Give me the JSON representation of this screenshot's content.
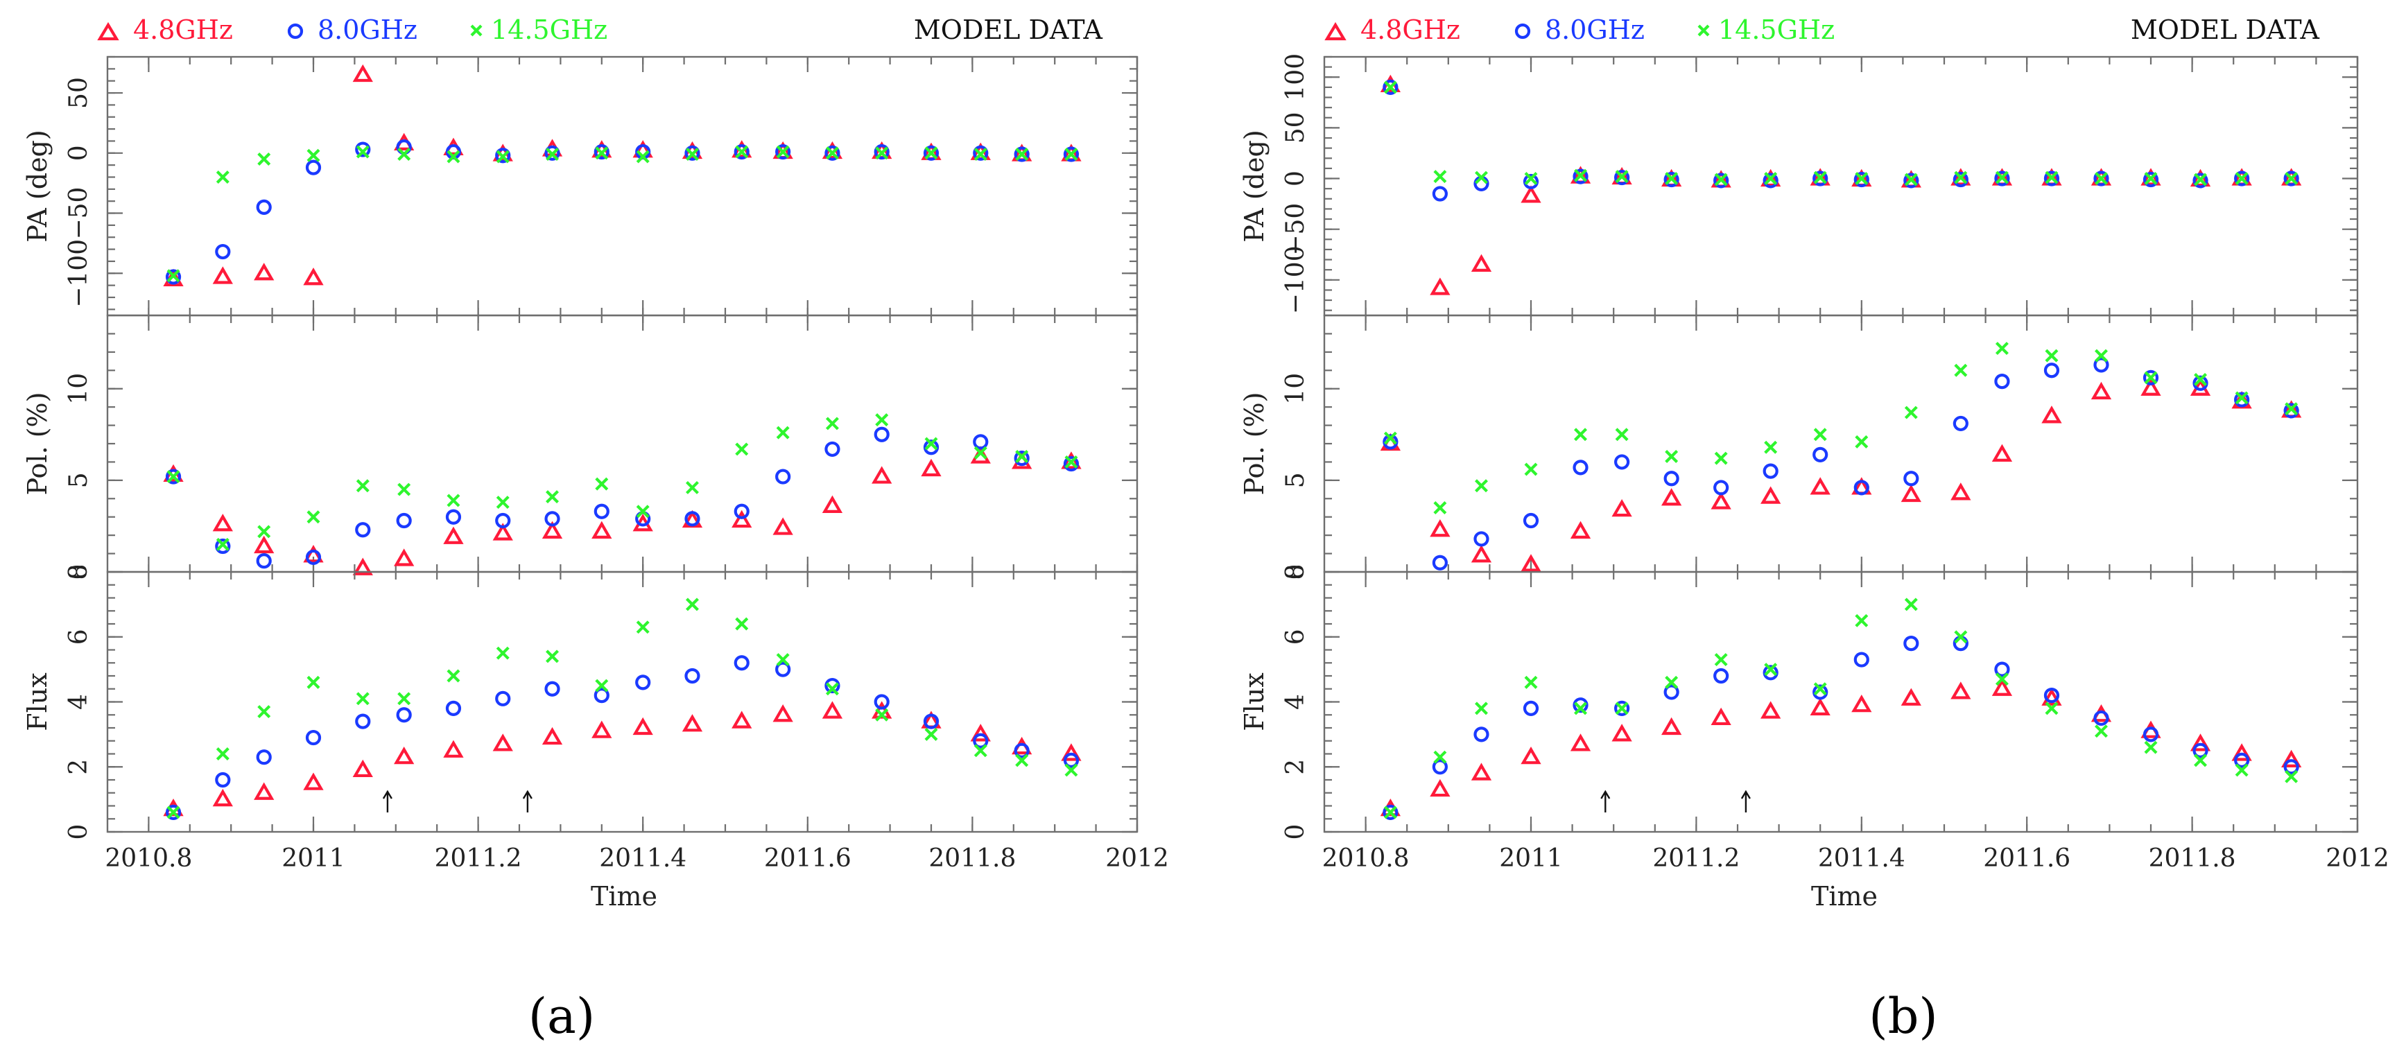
{
  "legend": [
    {
      "label": "4.8GHz",
      "color": "#ff1a3a",
      "marker": "triangle"
    },
    {
      "label": "8.0GHz",
      "color": "#1a3aff",
      "marker": "circle"
    },
    {
      "label": "14.5GHz",
      "color": "#2ef52e",
      "marker": "cross"
    }
  ],
  "model_label": "MODEL DATA",
  "xlabel": "Time",
  "xticks": [
    "2010.8",
    "2011",
    "2011.2",
    "2011.4",
    "2011.6",
    "2011.8",
    "2012"
  ],
  "colors": {
    "axis": "#6e6e6e",
    "overlap_purple": "#8a2aa0",
    "overlap_brown": "#8a5a3a",
    "overlap_teal": "#2a9a9a",
    "overlap_slate": "#556070"
  },
  "chart_data": [
    {
      "caption": "(a)",
      "type": "scatter",
      "x": [
        2010.83,
        2010.89,
        2010.94,
        2011.0,
        2011.06,
        2011.11,
        2011.17,
        2011.23,
        2011.29,
        2011.35,
        2011.4,
        2011.46,
        2011.52,
        2011.57,
        2011.63,
        2011.69,
        2011.75,
        2011.81,
        2011.86,
        2011.92
      ],
      "arrows": [
        2011.09,
        2011.26
      ],
      "panels": [
        {
          "ylabel": "PA (deg)",
          "ylim": [
            -135,
            80
          ],
          "yticks": [
            -100,
            -50,
            0,
            50
          ],
          "ytick_labels": [
            "−100",
            "−50",
            "0",
            "50"
          ],
          "series": [
            {
              "name": "4.8GHz",
              "values": [
                -105,
                -103,
                -100,
                -104,
                65,
                8,
                4,
                -1,
                3,
                2,
                2,
                1,
                2,
                1,
                1,
                1,
                0,
                0,
                -1,
                -1
              ]
            },
            {
              "name": "8.0GHz",
              "values": [
                -103,
                -82,
                -45,
                -12,
                3,
                5,
                1,
                -2,
                0,
                1,
                1,
                0,
                1,
                1,
                0,
                1,
                0,
                0,
                -1,
                -1
              ]
            },
            {
              "name": "14.5GHz",
              "values": [
                -102,
                -20,
                -5,
                -2,
                1,
                -1,
                -3,
                -3,
                -1,
                0,
                -3,
                -1,
                1,
                1,
                0,
                0,
                0,
                -1,
                -1,
                -1
              ]
            }
          ]
        },
        {
          "ylabel": "Pol. (%)",
          "ylim": [
            0,
            14
          ],
          "yticks": [
            0,
            5,
            10
          ],
          "ytick_labels": [
            "0",
            "5",
            "10"
          ],
          "series": [
            {
              "name": "4.8GHz",
              "values": [
                5.3,
                2.6,
                1.4,
                0.9,
                0.2,
                0.7,
                1.9,
                2.1,
                2.2,
                2.2,
                2.6,
                2.8,
                2.8,
                2.4,
                3.6,
                5.2,
                5.6,
                6.3,
                6.0,
                6.0
              ]
            },
            {
              "name": "8.0GHz",
              "values": [
                5.2,
                1.4,
                0.6,
                0.8,
                2.3,
                2.8,
                3.0,
                2.8,
                2.9,
                3.3,
                2.9,
                2.9,
                3.3,
                5.2,
                6.7,
                7.5,
                6.8,
                7.1,
                6.2,
                5.9
              ]
            },
            {
              "name": "14.5GHz",
              "values": [
                5.2,
                1.5,
                2.2,
                3.0,
                4.7,
                4.5,
                3.9,
                3.8,
                4.1,
                4.8,
                3.3,
                4.6,
                6.7,
                7.6,
                8.1,
                8.3,
                7.0,
                6.5,
                6.3,
                6.0
              ]
            }
          ]
        },
        {
          "ylabel": "Flux",
          "ylim": [
            0,
            8
          ],
          "yticks": [
            0,
            2,
            4,
            6,
            8
          ],
          "ytick_labels": [
            "0",
            "2",
            "4",
            "6",
            "8"
          ],
          "series": [
            {
              "name": "4.8GHz",
              "values": [
                0.7,
                1.0,
                1.2,
                1.5,
                1.9,
                2.3,
                2.5,
                2.7,
                2.9,
                3.1,
                3.2,
                3.3,
                3.4,
                3.6,
                3.7,
                3.7,
                3.4,
                3.0,
                2.6,
                2.4
              ]
            },
            {
              "name": "8.0GHz",
              "values": [
                0.6,
                1.6,
                2.3,
                2.9,
                3.4,
                3.6,
                3.8,
                4.1,
                4.4,
                4.2,
                4.6,
                4.8,
                5.2,
                5.0,
                4.5,
                4.0,
                3.4,
                2.8,
                2.5,
                2.2
              ]
            },
            {
              "name": "14.5GHz",
              "values": [
                0.6,
                2.4,
                3.7,
                4.6,
                4.1,
                4.1,
                4.8,
                5.5,
                5.4,
                4.5,
                6.3,
                7.0,
                6.4,
                5.3,
                4.4,
                3.6,
                3.0,
                2.5,
                2.2,
                1.9
              ]
            }
          ]
        }
      ]
    },
    {
      "caption": "(b)",
      "type": "scatter",
      "x": [
        2010.83,
        2010.89,
        2010.94,
        2011.0,
        2011.06,
        2011.11,
        2011.17,
        2011.23,
        2011.29,
        2011.35,
        2011.4,
        2011.46,
        2011.52,
        2011.57,
        2011.63,
        2011.69,
        2011.75,
        2011.81,
        2011.86,
        2011.92
      ],
      "arrows": [
        2011.09,
        2011.26
      ],
      "panels": [
        {
          "ylabel": "PA (deg)",
          "ylim": [
            -135,
            120
          ],
          "yticks": [
            -100,
            -50,
            0,
            50,
            100
          ],
          "ytick_labels": [
            "−100",
            "−50",
            "0",
            "50",
            "100"
          ],
          "series": [
            {
              "name": "4.8GHz",
              "values": [
                92,
                -108,
                -85,
                -17,
                2,
                1,
                -1,
                -2,
                -1,
                0,
                -1,
                -2,
                0,
                0,
                0,
                0,
                0,
                -1,
                0,
                0
              ]
            },
            {
              "name": "8.0GHz",
              "values": [
                90,
                -15,
                -5,
                -3,
                2,
                1,
                -1,
                -2,
                -2,
                0,
                -1,
                -2,
                -1,
                0,
                0,
                0,
                -1,
                -2,
                0,
                0
              ]
            },
            {
              "name": "14.5GHz",
              "values": [
                90,
                2,
                1,
                0,
                3,
                2,
                0,
                -1,
                0,
                1,
                0,
                -1,
                1,
                1,
                1,
                0,
                0,
                -1,
                0,
                0
              ]
            }
          ]
        },
        {
          "ylabel": "Pol. (%)",
          "ylim": [
            0,
            14
          ],
          "yticks": [
            0,
            5,
            10
          ],
          "ytick_labels": [
            "0",
            "5",
            "10"
          ],
          "series": [
            {
              "name": "4.8GHz",
              "values": [
                7.0,
                2.3,
                0.9,
                0.4,
                2.2,
                3.4,
                4.0,
                3.8,
                4.1,
                4.6,
                4.6,
                4.2,
                4.3,
                6.4,
                8.5,
                9.8,
                10.0,
                10.0,
                9.3,
                8.8
              ]
            },
            {
              "name": "8.0GHz",
              "values": [
                7.1,
                0.5,
                1.8,
                2.8,
                5.7,
                6.0,
                5.1,
                4.6,
                5.5,
                6.4,
                4.6,
                5.1,
                8.1,
                10.4,
                11.0,
                11.3,
                10.6,
                10.3,
                9.4,
                8.8
              ]
            },
            {
              "name": "14.5GHz",
              "values": [
                7.3,
                3.5,
                4.7,
                5.6,
                7.5,
                7.5,
                6.3,
                6.2,
                6.8,
                7.5,
                7.1,
                8.7,
                11.0,
                12.2,
                11.8,
                11.8,
                10.6,
                10.5,
                9.5,
                8.9
              ]
            }
          ]
        },
        {
          "ylabel": "Flux",
          "ylim": [
            0,
            8
          ],
          "yticks": [
            0,
            2,
            4,
            6,
            8
          ],
          "ytick_labels": [
            "0",
            "2",
            "4",
            "6",
            "8"
          ],
          "series": [
            {
              "name": "4.8GHz",
              "values": [
                0.7,
                1.3,
                1.8,
                2.3,
                2.7,
                3.0,
                3.2,
                3.5,
                3.7,
                3.8,
                3.9,
                4.1,
                4.3,
                4.4,
                4.1,
                3.6,
                3.1,
                2.7,
                2.4,
                2.2
              ]
            },
            {
              "name": "8.0GHz",
              "values": [
                0.6,
                2.0,
                3.0,
                3.8,
                3.9,
                3.8,
                4.3,
                4.8,
                4.9,
                4.3,
                5.3,
                5.8,
                5.8,
                5.0,
                4.2,
                3.5,
                3.0,
                2.5,
                2.2,
                2.0
              ]
            },
            {
              "name": "14.5GHz",
              "values": [
                0.6,
                2.3,
                3.8,
                4.6,
                3.8,
                3.8,
                4.6,
                5.3,
                5.0,
                4.4,
                6.5,
                7.0,
                6.0,
                4.7,
                3.8,
                3.1,
                2.6,
                2.2,
                1.9,
                1.7
              ]
            }
          ]
        }
      ]
    }
  ]
}
